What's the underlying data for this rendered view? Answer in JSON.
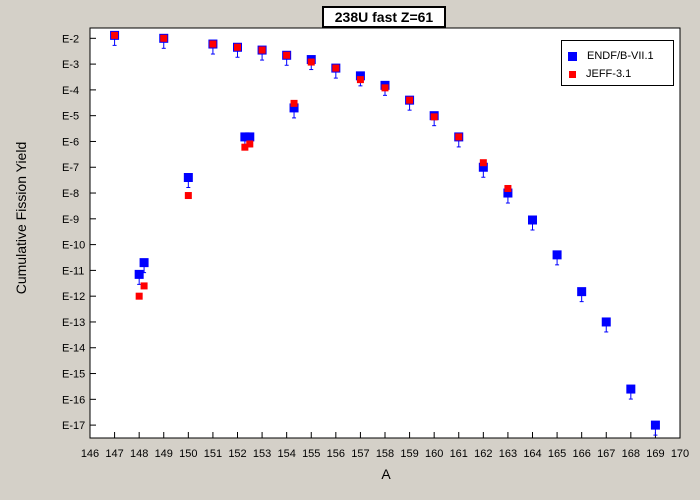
{
  "chart_data": {
    "type": "scatter",
    "title": "238U fast Z=61",
    "xlabel": "A",
    "ylabel": "Cumulative Fission Yield",
    "xlim": [
      146,
      170
    ],
    "ylim_exponent": [
      -17.5,
      -1.6
    ],
    "y_scale": "log",
    "x_ticks": [
      "146",
      "147",
      "148",
      "149",
      "150",
      "151",
      "152",
      "153",
      "154",
      "155",
      "156",
      "157",
      "158",
      "159",
      "160",
      "161",
      "162",
      "163",
      "164",
      "165",
      "166",
      "167",
      "168",
      "169",
      "170"
    ],
    "y_ticks": [
      "E-2",
      "E-3",
      "E-4",
      "E-5",
      "E-6",
      "E-7",
      "E-8",
      "E-9",
      "E-10",
      "E-11",
      "E-12",
      "E-13",
      "E-14",
      "E-15",
      "E-16",
      "E-17"
    ],
    "legend_position": "top-right",
    "series": [
      {
        "name": "ENDF/B-VII.1",
        "color": "#0000ff",
        "marker": "square",
        "points": [
          {
            "x": 147,
            "y": "1.3E-2"
          },
          {
            "x": 148,
            "y": "7E-12"
          },
          {
            "x": 148.2,
            "y": "2E-11"
          },
          {
            "x": 149,
            "y": "1.0E-2"
          },
          {
            "x": 150,
            "y": "4E-8"
          },
          {
            "x": 151,
            "y": "6E-3"
          },
          {
            "x": 152,
            "y": "4.5E-3"
          },
          {
            "x": 152.3,
            "y": "1.5E-6"
          },
          {
            "x": 152.5,
            "y": "1.5E-6"
          },
          {
            "x": 153,
            "y": "3.5E-3"
          },
          {
            "x": 154,
            "y": "2.2E-3"
          },
          {
            "x": 154.3,
            "y": "2E-5"
          },
          {
            "x": 155,
            "y": "1.5E-3"
          },
          {
            "x": 156,
            "y": "7E-4"
          },
          {
            "x": 157,
            "y": "3.5E-4"
          },
          {
            "x": 158,
            "y": "1.5E-4"
          },
          {
            "x": 159,
            "y": "4E-5"
          },
          {
            "x": 160,
            "y": "1E-5"
          },
          {
            "x": 161,
            "y": "1.5E-6"
          },
          {
            "x": 162,
            "y": "1E-7"
          },
          {
            "x": 163,
            "y": "1E-8"
          },
          {
            "x": 164,
            "y": "9E-10"
          },
          {
            "x": 165,
            "y": "4E-11"
          },
          {
            "x": 166,
            "y": "1.5E-12"
          },
          {
            "x": 167,
            "y": "1E-13"
          },
          {
            "x": 168,
            "y": "2.5E-16"
          },
          {
            "x": 169,
            "y": "1E-17"
          }
        ]
      },
      {
        "name": "JEFF-3.1",
        "color": "#ff0000",
        "marker": "square",
        "points": [
          {
            "x": 147,
            "y": "1.3E-2"
          },
          {
            "x": 148,
            "y": "1E-12"
          },
          {
            "x": 148.2,
            "y": "2.5E-12"
          },
          {
            "x": 149,
            "y": "1.0E-2"
          },
          {
            "x": 150,
            "y": "8E-9"
          },
          {
            "x": 151,
            "y": "6E-3"
          },
          {
            "x": 152,
            "y": "4.5E-3"
          },
          {
            "x": 152.3,
            "y": "6E-7"
          },
          {
            "x": 152.5,
            "y": "8E-7"
          },
          {
            "x": 153,
            "y": "3.5E-3"
          },
          {
            "x": 154,
            "y": "2.2E-3"
          },
          {
            "x": 154.3,
            "y": "3E-5"
          },
          {
            "x": 155,
            "y": "1.2E-3"
          },
          {
            "x": 156,
            "y": "7E-4"
          },
          {
            "x": 157,
            "y": "2.5E-4"
          },
          {
            "x": 158,
            "y": "1.2E-4"
          },
          {
            "x": 159,
            "y": "4E-5"
          },
          {
            "x": 160,
            "y": "9E-6"
          },
          {
            "x": 161,
            "y": "1.5E-6"
          },
          {
            "x": 162,
            "y": "1.5E-7"
          },
          {
            "x": 163,
            "y": "1.5E-8"
          }
        ]
      }
    ]
  }
}
